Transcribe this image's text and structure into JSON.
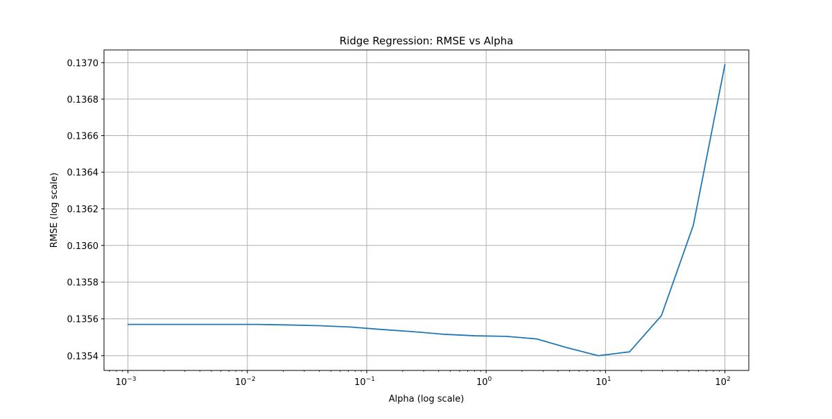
{
  "chart_data": {
    "type": "line",
    "title": "Ridge Regression: RMSE vs Alpha",
    "xlabel": "Alpha (log scale)",
    "ylabel": "RMSE (log scale)",
    "x_scale": "log",
    "y_scale": "log",
    "xlim": [
      0.00063,
      158.5
    ],
    "ylim": [
      0.13532,
      0.13707
    ],
    "grid": true,
    "line_color": "#1f77b4",
    "x_ticks": [
      {
        "value": 0.001,
        "label_base": "10",
        "label_exp": "−3"
      },
      {
        "value": 0.01,
        "label_base": "10",
        "label_exp": "−2"
      },
      {
        "value": 0.1,
        "label_base": "10",
        "label_exp": "−1"
      },
      {
        "value": 1,
        "label_base": "10",
        "label_exp": "0"
      },
      {
        "value": 10,
        "label_base": "10",
        "label_exp": "1"
      },
      {
        "value": 100,
        "label_base": "10",
        "label_exp": "2"
      }
    ],
    "y_ticks": [
      {
        "value": 0.1354,
        "label": "0.1354"
      },
      {
        "value": 0.1356,
        "label": "0.1356"
      },
      {
        "value": 0.1358,
        "label": "0.1358"
      },
      {
        "value": 0.136,
        "label": "0.1360"
      },
      {
        "value": 0.1362,
        "label": "0.1362"
      },
      {
        "value": 0.1364,
        "label": "0.1364"
      },
      {
        "value": 0.1366,
        "label": "0.1366"
      },
      {
        "value": 0.1368,
        "label": "0.1368"
      },
      {
        "value": 0.137,
        "label": "0.1370"
      }
    ],
    "series": [
      {
        "x": [
          0.001,
          0.002,
          0.0036,
          0.0067,
          0.012,
          0.022,
          0.04,
          0.072,
          0.13,
          0.24,
          0.45,
          0.81,
          1.47,
          2.66,
          4.8,
          8.7,
          15.9,
          29.4,
          54.4,
          100
        ],
        "values": [
          0.13557,
          0.13557,
          0.13557,
          0.13557,
          0.13557,
          0.135567,
          0.135563,
          0.135556,
          0.135543,
          0.135531,
          0.135516,
          0.135508,
          0.135505,
          0.135491,
          0.135443,
          0.1354,
          0.135421,
          0.135618,
          0.13611,
          0.13699
        ]
      }
    ]
  }
}
